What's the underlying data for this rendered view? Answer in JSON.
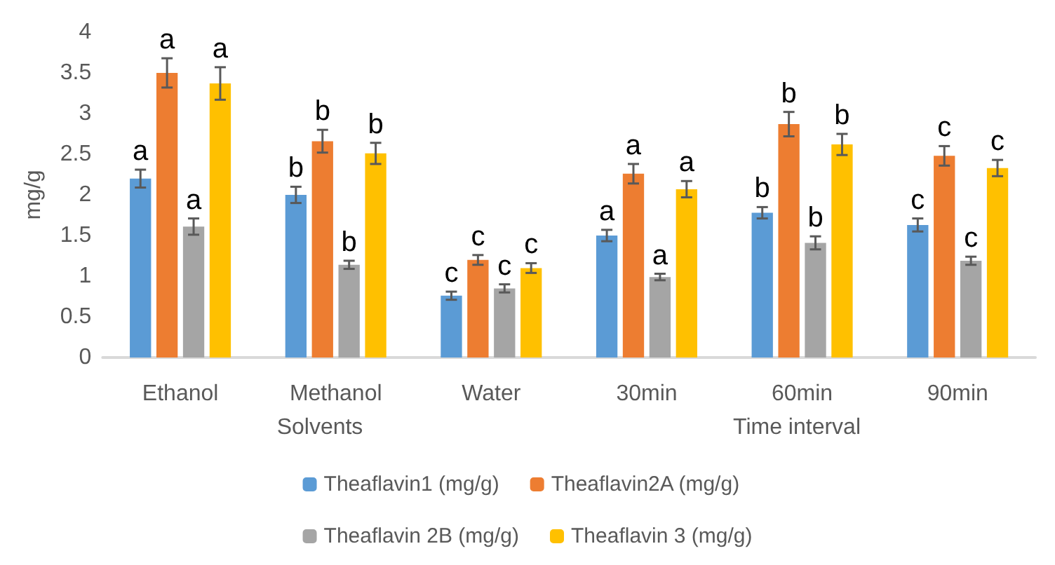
{
  "chart_data": {
    "type": "bar",
    "ylabel": "mg/g",
    "categories": [
      "Ethanol",
      "Methanol",
      "Water",
      "30min",
      "60min",
      "90min"
    ],
    "series": [
      {
        "name": "Theaflavin1 (mg/g)",
        "color": "#5b9bd5",
        "values": [
          2.2,
          2.0,
          0.76,
          1.5,
          1.78,
          1.63
        ],
        "errors": [
          0.11,
          0.1,
          0.05,
          0.07,
          0.07,
          0.08
        ],
        "value_labels": [
          "a",
          "b",
          "c",
          "a",
          "b",
          "c"
        ]
      },
      {
        "name": "Theaflavin2A (mg/g)",
        "color": "#ed7d31",
        "values": [
          3.5,
          2.66,
          1.2,
          2.26,
          2.87,
          2.48
        ],
        "errors": [
          0.18,
          0.14,
          0.06,
          0.12,
          0.15,
          0.12
        ],
        "value_labels": [
          "a",
          "b",
          "c",
          "a",
          "b",
          "c"
        ]
      },
      {
        "name": "Theaflavin 2B (mg/g)",
        "color": "#a5a5a5",
        "values": [
          1.61,
          1.14,
          0.85,
          0.99,
          1.41,
          1.19
        ],
        "errors": [
          0.1,
          0.05,
          0.05,
          0.04,
          0.08,
          0.05
        ],
        "value_labels": [
          "a",
          "b",
          "c",
          "a",
          "b",
          "c"
        ]
      },
      {
        "name": "Theaflavin 3 (mg/g)",
        "color": "#ffc000",
        "values": [
          3.37,
          2.51,
          1.1,
          2.07,
          2.62,
          2.33
        ],
        "errors": [
          0.2,
          0.13,
          0.06,
          0.1,
          0.13,
          0.1
        ],
        "value_labels": [
          "a",
          "b",
          "c",
          "a",
          "b",
          "c"
        ]
      }
    ],
    "ylim": [
      0,
      4
    ],
    "yticks": [
      0,
      0.5,
      1,
      1.5,
      2,
      2.5,
      3,
      3.5,
      4
    ],
    "grid": false,
    "legend": "bottom",
    "annotations": [
      "Solvents",
      "Time interval"
    ]
  }
}
